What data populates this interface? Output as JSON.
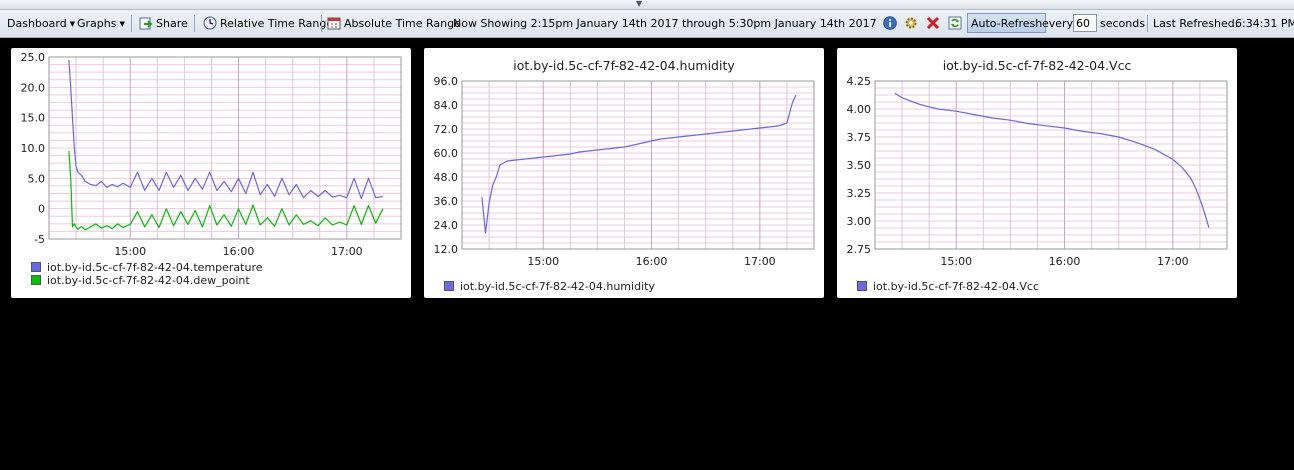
{
  "toolbar": {
    "dashboard_label": "Dashboard",
    "graphs_label": "Graphs",
    "share_label": "Share",
    "relative_label": "Relative Time Range",
    "absolute_label": "Absolute Time Range",
    "now_showing": "Now Showing 2:15pm January 14th 2017 through 5:30pm January 14th 2017",
    "autorefresh_label": "Auto-Refresh",
    "every_label": "every",
    "interval_value": "60",
    "seconds_label": "seconds",
    "last_refreshed_label": "Last Refreshed:",
    "last_refreshed_value": "6:34:31 PM",
    "icons": [
      "dropdown-caret-icon",
      "share-icon",
      "clock-icon",
      "calendar-icon",
      "info-icon",
      "gear-icon",
      "delete-icon",
      "refresh-icon"
    ]
  },
  "colors": {
    "temperature": "#6868ec",
    "dew_point": "#00c000",
    "humidity": "#6868ec",
    "vcc": "#6868ec",
    "grid_h": "#f2c7e0",
    "grid_v": "#e2c5d8",
    "accent": "#6868ec"
  },
  "chart_data": [
    {
      "type": "line",
      "title": "",
      "x_range": [
        "14:15",
        "17:30"
      ],
      "x_ticks": [
        "15:00",
        "16:00",
        "17:00"
      ],
      "y_ticks": [
        "25.0",
        "20.0",
        "15.0",
        "10.0",
        "5.0",
        "0",
        "-5"
      ],
      "ylim": [
        -5,
        25
      ],
      "legend": "bottom-left",
      "grid": true,
      "series": [
        {
          "name": "iot.by-id.5c-cf-7f-82-42-04.temperature",
          "x": [
            "14:26",
            "14:27",
            "14:28",
            "14:29",
            "14:30",
            "14:31",
            "14:33",
            "14:35",
            "14:38",
            "14:41",
            "14:44",
            "14:47",
            "14:50",
            "14:53",
            "14:56",
            "15:00",
            "15:04",
            "15:08",
            "15:12",
            "15:16",
            "15:20",
            "15:24",
            "15:28",
            "15:32",
            "15:36",
            "15:40",
            "15:44",
            "15:48",
            "15:52",
            "15:56",
            "16:00",
            "16:04",
            "16:08",
            "16:12",
            "16:16",
            "16:20",
            "16:24",
            "16:28",
            "16:32",
            "16:36",
            "16:40",
            "16:44",
            "16:48",
            "16:52",
            "16:56",
            "17:00",
            "17:04",
            "17:08",
            "17:12",
            "17:16",
            "17:20"
          ],
          "y": [
            24.5,
            20,
            15,
            10,
            7,
            6,
            5.5,
            4.5,
            4,
            3.8,
            4.5,
            3.5,
            4,
            3.6,
            4.2,
            3.5,
            6,
            3,
            5,
            3,
            6,
            3.5,
            5.5,
            3,
            5,
            3.2,
            6,
            3,
            4.5,
            2.8,
            5,
            2.5,
            6,
            2.3,
            4,
            2,
            5,
            2.3,
            4,
            1.8,
            3,
            2,
            3,
            1.9,
            2.2,
            1.8,
            5,
            1.7,
            5,
            1.8,
            2
          ]
        },
        {
          "name": "iot.by-id.5c-cf-7f-82-42-04.dew_point",
          "x": [
            "14:26",
            "14:27",
            "14:28",
            "14:29",
            "14:30",
            "14:31",
            "14:33",
            "14:35",
            "14:38",
            "14:41",
            "14:44",
            "14:47",
            "14:50",
            "14:53",
            "14:56",
            "15:00",
            "15:04",
            "15:08",
            "15:12",
            "15:16",
            "15:20",
            "15:24",
            "15:28",
            "15:32",
            "15:36",
            "15:40",
            "15:44",
            "15:48",
            "15:52",
            "15:56",
            "16:00",
            "16:04",
            "16:08",
            "16:12",
            "16:16",
            "16:20",
            "16:24",
            "16:28",
            "16:32",
            "16:36",
            "16:40",
            "16:44",
            "16:48",
            "16:52",
            "16:56",
            "17:00",
            "17:04",
            "17:08",
            "17:12",
            "17:16",
            "17:20"
          ],
          "y": [
            9.5,
            5,
            -3,
            -2.5,
            -3,
            -3.4,
            -2.9,
            -3.5,
            -3,
            -2.5,
            -3.2,
            -2.8,
            -3.3,
            -2.5,
            -3.1,
            -2.6,
            -0.5,
            -3,
            -1,
            -3.1,
            0,
            -2.8,
            -0.5,
            -2.6,
            -0.3,
            -3,
            0.5,
            -2.7,
            -1,
            -2.9,
            0,
            -2.6,
            0.6,
            -2.7,
            -1.5,
            -2.9,
            0,
            -2.7,
            -1,
            -2.6,
            -2,
            -2.8,
            -1.5,
            -2.7,
            -2.2,
            -2.7,
            0.5,
            -2.6,
            0.5,
            -2.4,
            0
          ]
        }
      ]
    },
    {
      "type": "line",
      "title": "iot.by-id.5c-cf-7f-82-42-04.humidity",
      "x_range": [
        "14:15",
        "17:30"
      ],
      "x_ticks": [
        "15:00",
        "16:00",
        "17:00"
      ],
      "y_ticks": [
        "96.0",
        "84.0",
        "72.0",
        "60.0",
        "48.0",
        "36.0",
        "24.0",
        "12.0"
      ],
      "ylim": [
        12,
        96
      ],
      "legend": "bottom-left",
      "grid": true,
      "series": [
        {
          "name": "iot.by-id.5c-cf-7f-82-42-04.humidity",
          "x": [
            "14:26",
            "14:28",
            "14:30",
            "14:32",
            "14:34",
            "14:36",
            "14:38",
            "14:40",
            "14:45",
            "14:50",
            "14:55",
            "15:00",
            "15:05",
            "15:10",
            "15:15",
            "15:20",
            "15:25",
            "15:30",
            "15:35",
            "15:40",
            "15:45",
            "15:50",
            "15:55",
            "16:00",
            "16:05",
            "16:10",
            "16:15",
            "16:20",
            "16:25",
            "16:30",
            "16:35",
            "16:40",
            "16:45",
            "16:50",
            "16:55",
            "17:00",
            "17:05",
            "17:10",
            "17:12",
            "17:15",
            "17:18",
            "17:20"
          ],
          "y": [
            38,
            20,
            35,
            44,
            48,
            54,
            55,
            56,
            56.5,
            57,
            57.5,
            58,
            58.5,
            59,
            59.5,
            60.5,
            61,
            61.5,
            62,
            62.5,
            63,
            64,
            65,
            66,
            67,
            67.5,
            68,
            68.5,
            69,
            69.5,
            70,
            70.5,
            71,
            71.5,
            72,
            72.5,
            73,
            73.5,
            74,
            75,
            85,
            89
          ]
        }
      ]
    },
    {
      "type": "line",
      "title": "iot.by-id.5c-cf-7f-82-42-04.Vcc",
      "x_range": [
        "14:15",
        "17:30"
      ],
      "x_ticks": [
        "15:00",
        "16:00",
        "17:00"
      ],
      "y_ticks": [
        "4.25",
        "4.00",
        "3.75",
        "3.50",
        "3.25",
        "3.00",
        "2.75"
      ],
      "ylim": [
        2.75,
        4.25
      ],
      "legend": "bottom-left",
      "grid": true,
      "series": [
        {
          "name": "iot.by-id.5c-cf-7f-82-42-04.Vcc",
          "x": [
            "14:26",
            "14:30",
            "14:35",
            "14:40",
            "14:45",
            "14:50",
            "15:00",
            "15:10",
            "15:20",
            "15:30",
            "15:40",
            "15:50",
            "16:00",
            "16:10",
            "16:20",
            "16:30",
            "16:40",
            "16:50",
            "17:00",
            "17:05",
            "17:10",
            "17:13",
            "17:16",
            "17:18",
            "17:20"
          ],
          "y": [
            4.14,
            4.1,
            4.07,
            4.04,
            4.02,
            4.0,
            3.98,
            3.95,
            3.92,
            3.9,
            3.87,
            3.85,
            3.83,
            3.8,
            3.78,
            3.75,
            3.7,
            3.64,
            3.55,
            3.48,
            3.38,
            3.28,
            3.15,
            3.05,
            2.94
          ]
        }
      ]
    }
  ]
}
